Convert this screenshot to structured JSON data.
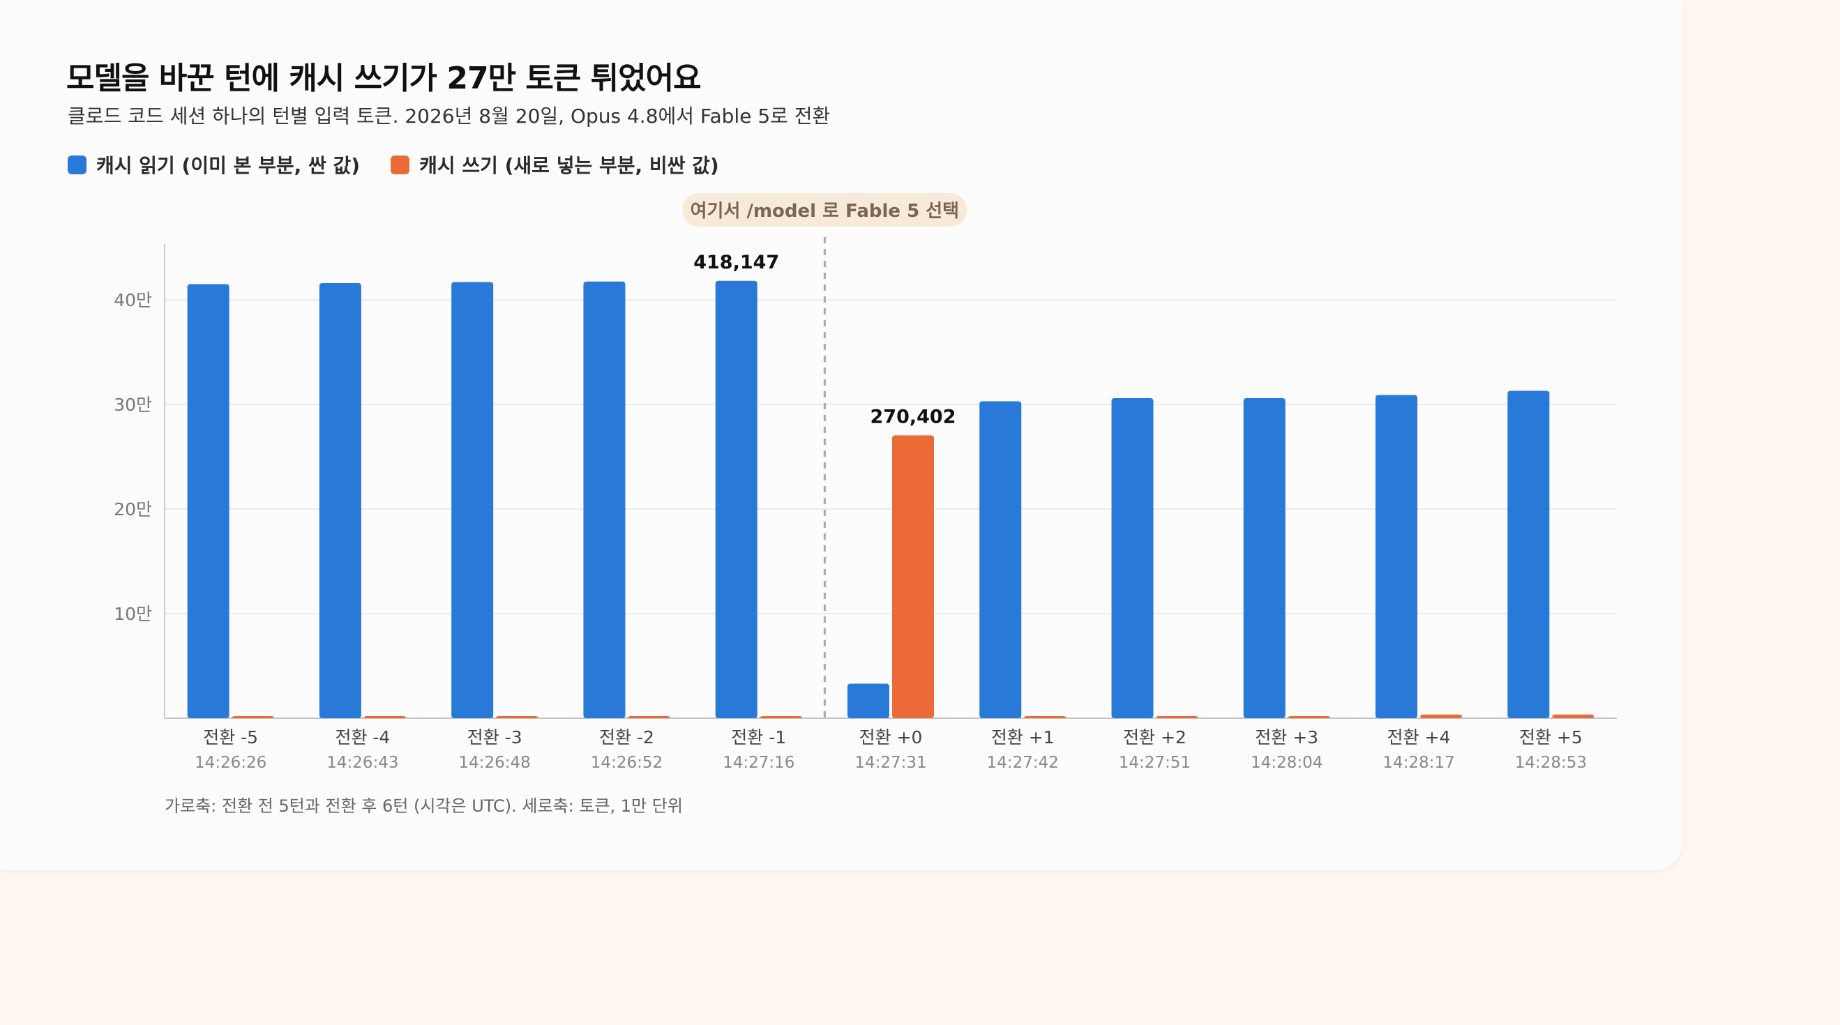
{
  "chart_data": {
    "type": "bar",
    "title": "모델을 바꾼 턴에 캐시 쓰기가 27만 토큰 튀었어요",
    "subtitle": "클로드 코드 세션 하나의 턴별 입력 토큰. 2026년 8월 20일, Opus 4.8에서 Fable 5로 전환",
    "categories": [
      "전환 -5",
      "전환 -4",
      "전환 -3",
      "전환 -2",
      "전환 -1",
      "전환 +0",
      "전환 +1",
      "전환 +2",
      "전환 +3",
      "전환 +4",
      "전환 +5"
    ],
    "times": [
      "14:26:26",
      "14:26:43",
      "14:26:48",
      "14:26:52",
      "14:27:16",
      "14:27:31",
      "14:27:42",
      "14:27:51",
      "14:28:04",
      "14:28:17",
      "14:28:53"
    ],
    "series": [
      {
        "name": "캐시 읽기 (이미 본 부분, 싼 값)",
        "color": "#2979d9",
        "values": [
          415000,
          416000,
          417000,
          417500,
          418147,
          33000,
          303000,
          306000,
          306000,
          309000,
          313000
        ]
      },
      {
        "name": "캐시 쓰기 (새로 넣는 부분, 비싼 값)",
        "color": "#ec6a37",
        "values": [
          2000,
          2000,
          2000,
          2000,
          2000,
          270402,
          2000,
          2000,
          2000,
          3500,
          3500
        ]
      }
    ],
    "data_labels": [
      {
        "category_index": 4,
        "series_index": 0,
        "text": "418,147"
      },
      {
        "category_index": 5,
        "series_index": 1,
        "text": "270,402"
      }
    ],
    "annotation": {
      "text": "여기서 /model 로 Fable 5 선택",
      "after_category_index": 4
    },
    "yticks": [
      100000,
      200000,
      300000,
      400000
    ],
    "ytick_labels": [
      "10만",
      "20만",
      "30만",
      "40만"
    ],
    "ylim": [
      0,
      450000
    ],
    "grid": true,
    "legend_position": "top-left",
    "footnote": "가로축: 전환 전 5턴과 전환 후 6턴 (시각은 UTC). 세로축: 토큰, 1만 단위"
  }
}
